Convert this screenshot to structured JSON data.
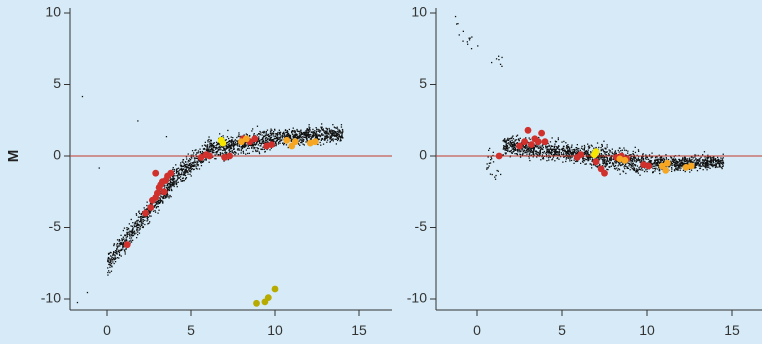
{
  "figure": {
    "background": "#d6ebf7",
    "ylabel": "M"
  },
  "colors": {
    "background": "#d6ebf7",
    "reference_line": "#c0392b",
    "cloud": "#111111",
    "red": "#d0312d",
    "orange": "#f5a623",
    "yellow": "#f7e600",
    "olive": "#b8ab00"
  },
  "chart_data": [
    {
      "type": "scatter",
      "title": "",
      "xlabel": "",
      "ylabel": "M",
      "xlim": [
        -2,
        17
      ],
      "ylim": [
        -10.5,
        10.5
      ],
      "xticks": [
        0,
        5,
        10,
        15
      ],
      "yticks": [
        -10,
        -5,
        0,
        5,
        10
      ],
      "xtick_labels": [
        "0",
        "5",
        "10",
        "15"
      ],
      "ytick_labels": [
        "-10",
        "-5",
        "0",
        "5",
        "10"
      ],
      "grid": false,
      "reference_line_y": 0,
      "background_cloud": {
        "description_color": "black",
        "segments": [
          {
            "x": [
              0.0,
              4.0
            ],
            "y_center": [
              -7.5,
              -1.5
            ],
            "y_spread": 1.5
          },
          {
            "x": [
              4.0,
              6.0
            ],
            "y_center": [
              -1.5,
              0.5
            ],
            "y_spread": 1.4
          },
          {
            "x": [
              6.0,
              10.0
            ],
            "y_center": [
              0.5,
              1.3
            ],
            "y_spread": 1.5
          },
          {
            "x": [
              10.0,
              14.0
            ],
            "y_center": [
              1.3,
              1.6
            ],
            "y_spread": 1.1
          }
        ],
        "outliers": [
          [
            -1.5,
            4.2
          ],
          [
            1.8,
            2.5
          ],
          [
            3.5,
            1.4
          ],
          [
            -0.5,
            -0.8
          ],
          [
            1.0,
            -5.0
          ],
          [
            -1.2,
            -9.5
          ],
          [
            -1.8,
            -10.2
          ]
        ]
      },
      "series": [
        {
          "color": "red",
          "points": [
            [
              1.2,
              -6.2
            ],
            [
              2.3,
              -4.0
            ],
            [
              2.6,
              -3.6
            ],
            [
              2.7,
              -3.1
            ],
            [
              2.9,
              -2.9
            ],
            [
              3.0,
              -2.6
            ],
            [
              3.1,
              -2.2
            ],
            [
              3.2,
              -2.0
            ],
            [
              3.3,
              -1.8
            ],
            [
              3.5,
              -1.7
            ],
            [
              3.6,
              -1.4
            ],
            [
              3.8,
              -1.2
            ],
            [
              5.6,
              -0.1
            ],
            [
              5.9,
              0.1
            ],
            [
              6.1,
              0.0
            ],
            [
              7.0,
              -0.1
            ],
            [
              7.3,
              0.0
            ],
            [
              8.1,
              1.2
            ],
            [
              8.5,
              1.0
            ],
            [
              8.8,
              1.2
            ],
            [
              9.5,
              0.7
            ],
            [
              9.8,
              0.8
            ],
            [
              2.9,
              -1.2
            ],
            [
              3.4,
              -2.5
            ]
          ]
        },
        {
          "color": "orange",
          "points": [
            [
              8.0,
              1.0
            ],
            [
              8.3,
              1.2
            ],
            [
              10.7,
              1.1
            ],
            [
              11.0,
              0.7
            ],
            [
              11.2,
              1.0
            ],
            [
              12.1,
              0.9
            ],
            [
              12.4,
              1.0
            ]
          ]
        },
        {
          "color": "yellow",
          "points": [
            [
              6.8,
              1.1
            ],
            [
              6.9,
              0.9
            ]
          ]
        },
        {
          "color": "olive",
          "points": [
            [
              8.9,
              -10.3
            ],
            [
              9.4,
              -10.2
            ],
            [
              9.6,
              -9.9
            ],
            [
              10.0,
              -9.3
            ]
          ]
        }
      ]
    },
    {
      "type": "scatter",
      "title": "",
      "xlabel": "",
      "ylabel": "",
      "xlim": [
        -2,
        17
      ],
      "ylim": [
        -10.5,
        10.5
      ],
      "xticks": [
        0,
        5,
        10,
        15
      ],
      "yticks": [
        -10,
        -5,
        0,
        5,
        10
      ],
      "xtick_labels": [
        "0",
        "5",
        "10",
        "15"
      ],
      "ytick_labels": [
        "-10",
        "-5",
        "0",
        "5",
        "10"
      ],
      "grid": false,
      "reference_line_y": 0,
      "background_cloud": {
        "description_color": "black",
        "segments": [
          {
            "x": [
              1.5,
              6.0
            ],
            "y_center": [
              0.8,
              0.2
            ],
            "y_spread": 1.3
          },
          {
            "x": [
              6.0,
              10.0
            ],
            "y_center": [
              0.2,
              -0.5
            ],
            "y_spread": 1.5
          },
          {
            "x": [
              10.0,
              14.5
            ],
            "y_center": [
              -0.5,
              -0.4
            ],
            "y_spread": 1.0
          }
        ],
        "extra_clusters": [
          {
            "x": [
              0.5,
              1.5
            ],
            "y_center": [
              -0.5,
              -0.5
            ],
            "y_spread": 2.5,
            "count": 25
          },
          {
            "x": [
              -1.5,
              1.5
            ],
            "y_center": [
              9.0,
              6.5
            ],
            "y_spread": 1.2,
            "count": 20
          }
        ],
        "outliers": [
          [
            0.3,
            10.6
          ],
          [
            -1.3,
            9.8
          ]
        ]
      },
      "series": [
        {
          "color": "red",
          "points": [
            [
              1.3,
              0.0
            ],
            [
              2.5,
              0.7
            ],
            [
              2.8,
              1.0
            ],
            [
              3.0,
              1.8
            ],
            [
              3.2,
              0.8
            ],
            [
              3.4,
              1.2
            ],
            [
              3.6,
              1.0
            ],
            [
              3.8,
              1.6
            ],
            [
              4.0,
              1.0
            ],
            [
              5.9,
              -0.1
            ],
            [
              6.1,
              0.1
            ],
            [
              7.0,
              -0.4
            ],
            [
              7.3,
              -0.9
            ],
            [
              7.5,
              -1.2
            ],
            [
              8.2,
              -0.1
            ],
            [
              8.5,
              0.0
            ],
            [
              8.8,
              -0.2
            ],
            [
              9.8,
              -0.6
            ],
            [
              10.1,
              -0.7
            ]
          ]
        },
        {
          "color": "orange",
          "points": [
            [
              8.4,
              -0.2
            ],
            [
              8.7,
              -0.3
            ],
            [
              10.9,
              -0.7
            ],
            [
              11.2,
              -0.5
            ],
            [
              11.1,
              -1.0
            ],
            [
              12.3,
              -0.8
            ],
            [
              12.6,
              -0.7
            ]
          ]
        },
        {
          "color": "yellow",
          "points": [
            [
              7.0,
              0.3
            ],
            [
              6.9,
              0.1
            ]
          ]
        }
      ]
    }
  ]
}
